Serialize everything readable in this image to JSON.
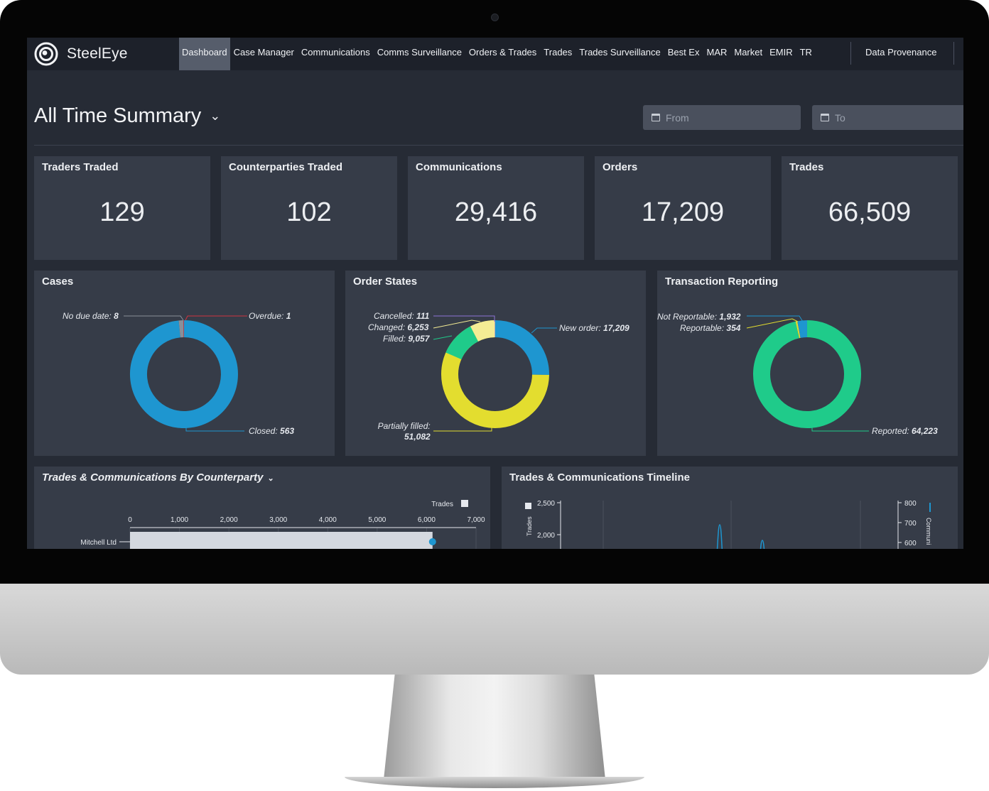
{
  "brand": {
    "name": "SteelEye"
  },
  "nav": {
    "items": [
      "Dashboard",
      "Case Manager",
      "Communications",
      "Comms Surveillance",
      "Orders & Trades",
      "Trades",
      "Trades Surveillance",
      "Best Ex",
      "MAR",
      "Market",
      "EMIR",
      "TR"
    ],
    "active": "Dashboard",
    "right": "Data Provenance"
  },
  "header": {
    "title": "All Time Summary",
    "from_placeholder": "From",
    "to_placeholder": "To"
  },
  "stats": [
    {
      "label": "Traders Traded",
      "value": "129"
    },
    {
      "label": "Counterparties Traded",
      "value": "102"
    },
    {
      "label": "Communications",
      "value": "29,416"
    },
    {
      "label": "Orders",
      "value": "17,209"
    },
    {
      "label": "Trades",
      "value": "66,509"
    }
  ],
  "cases": {
    "title": "Cases",
    "labels": {
      "no_due": {
        "name": "No due date:",
        "value": "8"
      },
      "overdue": {
        "name": "Overdue:",
        "value": "1"
      },
      "closed": {
        "name": "Closed:",
        "value": "563"
      }
    }
  },
  "order_states": {
    "title": "Order States",
    "labels": {
      "cancelled": {
        "name": "Cancelled:",
        "value": "111"
      },
      "changed": {
        "name": "Changed:",
        "value": "6,253"
      },
      "filled": {
        "name": "Filled:",
        "value": "9,057"
      },
      "new_order": {
        "name": "New order:",
        "value": "17,209"
      },
      "partially_filled": {
        "name": "Partially filled:",
        "value": "51,082"
      }
    }
  },
  "transaction_reporting": {
    "title": "Transaction Reporting",
    "labels": {
      "not_reportable": {
        "name": "Not Reportable:",
        "value": "1,932"
      },
      "reportable": {
        "name": "Reportable:",
        "value": "354"
      },
      "reported": {
        "name": "Reported:",
        "value": "64,223"
      }
    }
  },
  "by_counterparty": {
    "title": "Trades & Communications By Counterparty",
    "legend": "Trades",
    "ticks": [
      "0",
      "1,000",
      "2,000",
      "3,000",
      "4,000",
      "5,000",
      "6,000",
      "7,000"
    ],
    "category": "Mitchell Ltd"
  },
  "timeline": {
    "title": "Trades & Communications Timeline",
    "left_axis_label": "Trades",
    "left_ticks": [
      "2,500",
      "2,000"
    ],
    "right_axis_label": "Communi",
    "right_ticks": [
      "800",
      "700",
      "600"
    ]
  },
  "colors": {
    "blue": "#1e96d0",
    "green": "#1fcb8a",
    "yellow": "#e3dd2f",
    "pale_yellow": "#f4ec94",
    "red": "#d0343f",
    "purple": "#8d73d6",
    "grey": "#8a8f99"
  },
  "chart_data": [
    {
      "type": "pie",
      "title": "Cases",
      "categories": [
        "No due date",
        "Overdue",
        "Closed"
      ],
      "values": [
        8,
        1,
        563
      ]
    },
    {
      "type": "pie",
      "title": "Order States",
      "categories": [
        "Cancelled",
        "Changed",
        "Filled",
        "New order",
        "Partially filled"
      ],
      "values": [
        111,
        6253,
        9057,
        17209,
        51082
      ]
    },
    {
      "type": "pie",
      "title": "Transaction Reporting",
      "categories": [
        "Not Reportable",
        "Reportable",
        "Reported"
      ],
      "values": [
        1932,
        354,
        64223
      ]
    },
    {
      "type": "bar",
      "title": "Trades & Communications By Counterparty",
      "categories": [
        "Mitchell Ltd"
      ],
      "series": [
        {
          "name": "Trades",
          "values": [
            6120
          ]
        }
      ],
      "xlim": [
        0,
        7000
      ]
    }
  ]
}
